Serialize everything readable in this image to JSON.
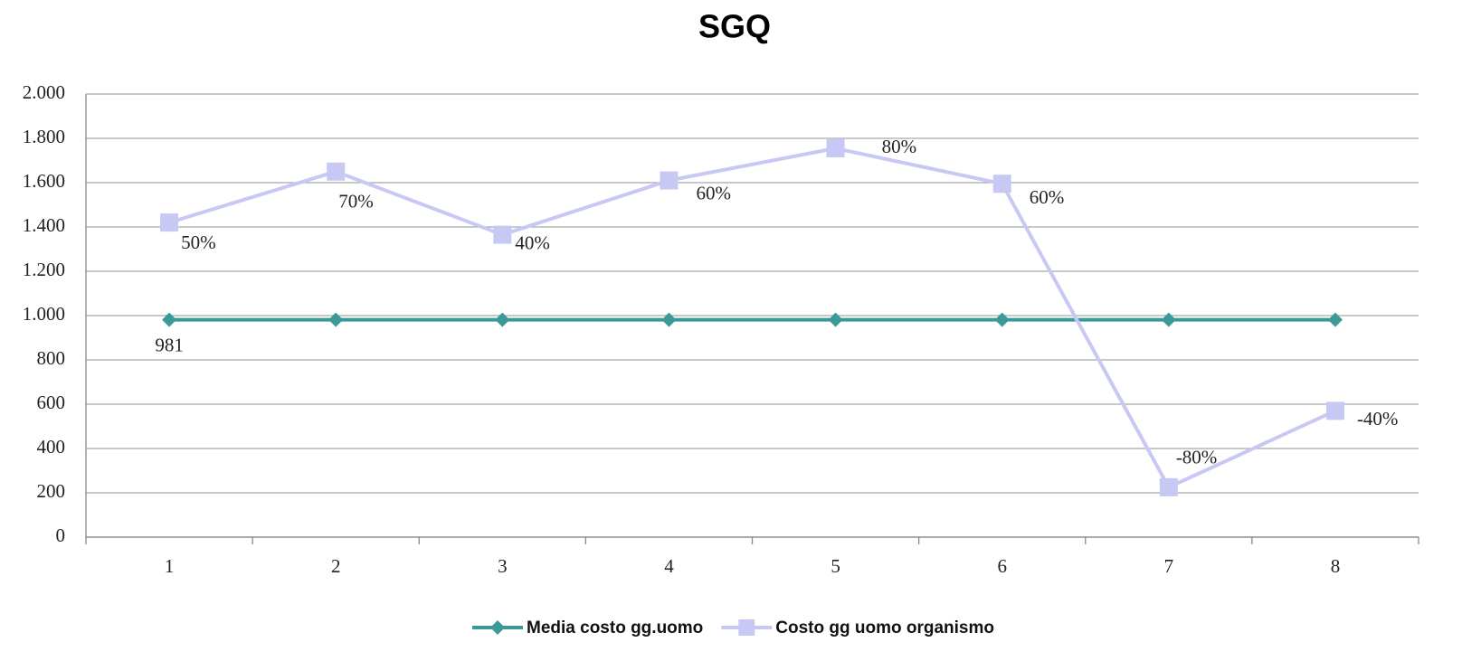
{
  "chart_data": {
    "type": "line",
    "title": "SGQ",
    "categories": [
      "1",
      "2",
      "3",
      "4",
      "5",
      "6",
      "7",
      "8"
    ],
    "series": [
      {
        "name": "Media costo gg.uomo",
        "color": "#3a9a9a",
        "marker": "diamond",
        "values": [
          981,
          981,
          981,
          981,
          981,
          981,
          981,
          981
        ],
        "value_labels": [
          "981",
          null,
          null,
          null,
          null,
          null,
          null,
          null
        ]
      },
      {
        "name": "Costo gg uomo organismo",
        "color": "#c8c8f5",
        "marker": "square",
        "values": [
          1420,
          1650,
          1365,
          1610,
          1755,
          1595,
          225,
          570
        ],
        "labels": [
          "50%",
          "70%",
          "40%",
          "60%",
          "80%",
          "60%",
          "-80%",
          "-40%"
        ]
      }
    ],
    "ylim": [
      0,
      2000
    ],
    "yticks": [
      0,
      200,
      400,
      600,
      800,
      {
        "value": 1000,
        "label": "1.000"
      },
      {
        "value": 1200,
        "label": "1.200"
      },
      {
        "value": 1400,
        "label": "1.400"
      },
      {
        "value": 1600,
        "label": "1.600"
      },
      {
        "value": 1800,
        "label": "1.800"
      },
      {
        "value": 2000,
        "label": "2.000"
      }
    ],
    "grid": true,
    "legend": "bottom"
  }
}
